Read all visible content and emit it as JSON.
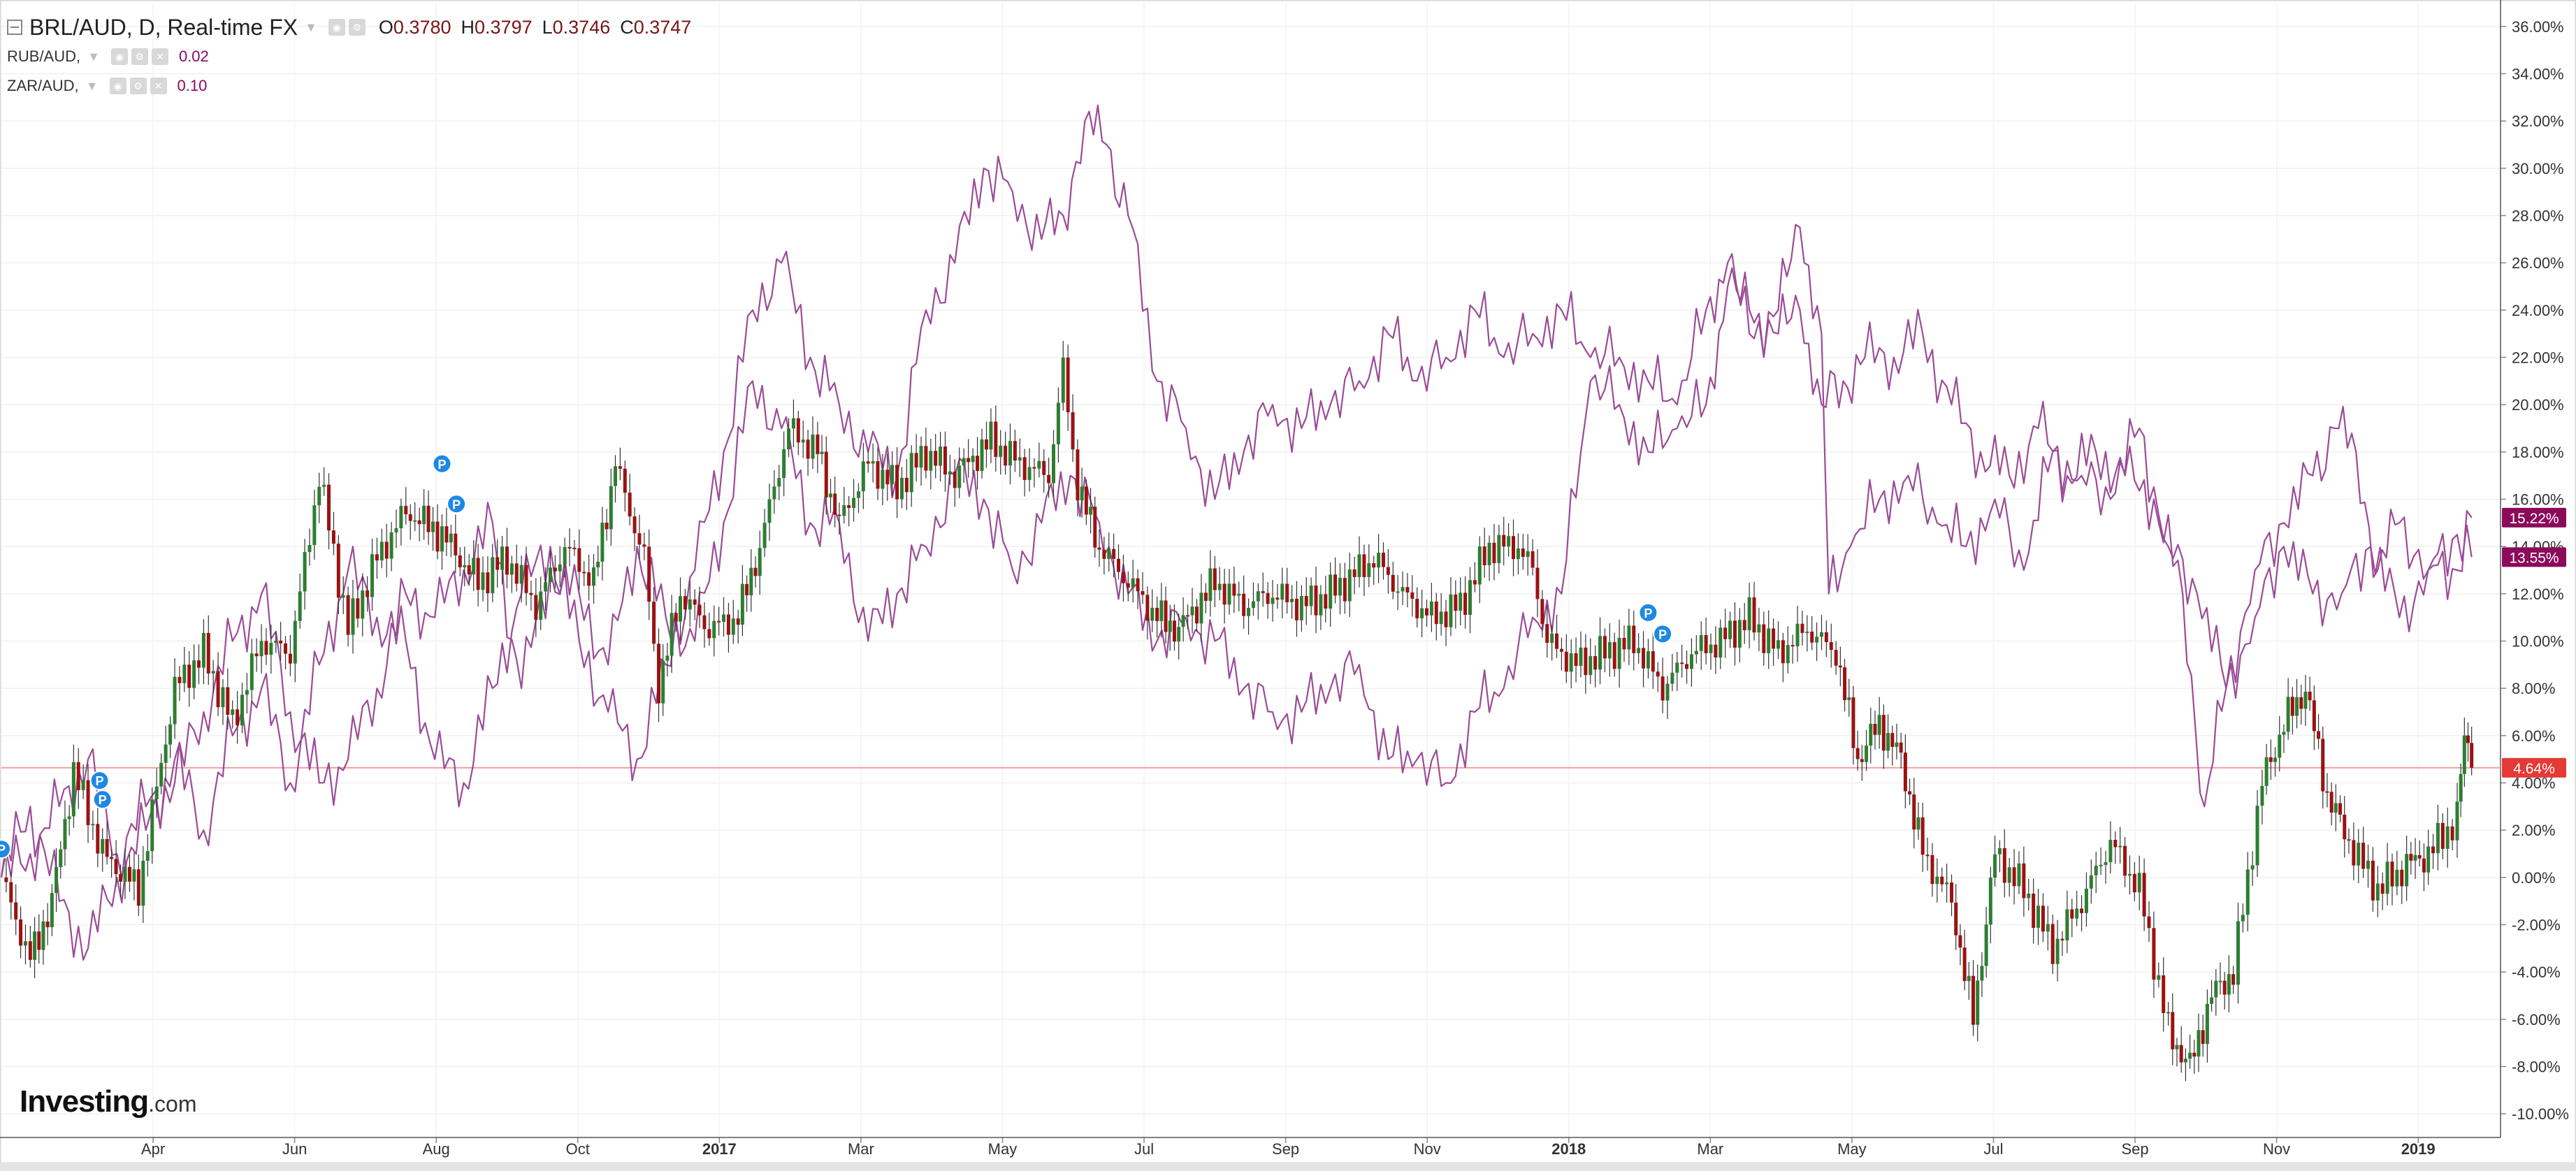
{
  "header": {
    "title": "BRL/AUD, D, Real-time FX",
    "ohlc": [
      {
        "label": "O",
        "value": "0.3780"
      },
      {
        "label": "H",
        "value": "0.3797"
      },
      {
        "label": "L",
        "value": "0.3746"
      },
      {
        "label": "C",
        "value": "0.3747"
      }
    ]
  },
  "comparisons": [
    {
      "symbol": "RUB/AUD,",
      "value": "0.02"
    },
    {
      "symbol": "ZAR/AUD,",
      "value": "0.10"
    }
  ],
  "logo": {
    "brand": "Investing",
    "suffix": ".com"
  },
  "chart_data": {
    "type": "line",
    "x_tick_labels": [
      "Apr",
      "Jun",
      "Aug",
      "Oct",
      "2017",
      "Mar",
      "May",
      "Jul",
      "Sep",
      "Nov",
      "2018",
      "Mar",
      "May",
      "Jul",
      "Sep",
      "Nov",
      "2019"
    ],
    "bold_x_ticks": [
      "2017",
      "2018",
      "2019"
    ],
    "y_tick_labels": [
      "36.00%",
      "34.00%",
      "32.00%",
      "30.00%",
      "28.00%",
      "26.00%",
      "24.00%",
      "22.00%",
      "20.00%",
      "18.00%",
      "16.00%",
      "14.00%",
      "12.00%",
      "10.00%",
      "8.00%",
      "6.00%",
      "4.00%",
      "2.00%",
      "0.00%",
      "-2.00%",
      "-4.00%",
      "-6.00%",
      "-8.00%",
      "-10.00%"
    ],
    "ylim": [
      -11,
      37
    ],
    "y_unit": "%",
    "grid": true,
    "reference_line": {
      "value": 4.64,
      "label": "4.64%",
      "color": "#e53935"
    },
    "series": [
      {
        "name": "BRL/AUD",
        "style": "candlestick",
        "up_color": "#2e7d32",
        "down_color": "#9b1212",
        "end_label": "4.64%",
        "values": [
          [
            0,
            0
          ],
          [
            2,
            -3.5
          ],
          [
            3.5,
            -1
          ],
          [
            5,
            4.5
          ],
          [
            7,
            1
          ],
          [
            9.5,
            -0.5
          ],
          [
            12,
            8
          ],
          [
            14,
            9.5
          ],
          [
            16,
            6.5
          ],
          [
            18,
            10
          ],
          [
            20,
            9.5
          ],
          [
            22,
            17
          ],
          [
            24,
            10.5
          ],
          [
            26,
            13.5
          ],
          [
            28,
            15.5
          ],
          [
            30.5,
            14.5
          ],
          [
            33,
            12.5
          ],
          [
            35,
            13.5
          ],
          [
            37,
            11.5
          ],
          [
            39,
            14
          ],
          [
            41,
            12.5
          ],
          [
            42.5,
            17.5
          ],
          [
            44.5,
            13.5
          ],
          [
            45.5,
            8
          ],
          [
            47,
            12
          ],
          [
            49,
            10.5
          ],
          [
            51,
            11
          ],
          [
            52.5,
            14
          ],
          [
            54.5,
            19
          ],
          [
            56.5,
            18
          ],
          [
            58,
            15
          ],
          [
            60,
            17.5
          ],
          [
            62,
            16.5
          ],
          [
            64,
            18
          ],
          [
            66,
            17
          ],
          [
            68.5,
            18.5
          ],
          [
            70.5,
            17.5
          ],
          [
            72.5,
            17
          ],
          [
            73.5,
            21.5
          ],
          [
            74.5,
            16.5
          ],
          [
            76,
            14
          ],
          [
            78,
            12.5
          ],
          [
            80,
            11
          ],
          [
            81.5,
            10.5
          ],
          [
            84,
            12.5
          ],
          [
            86,
            11.5
          ],
          [
            88,
            12
          ],
          [
            90,
            11.5
          ],
          [
            92,
            12
          ],
          [
            95,
            13.5
          ],
          [
            97,
            12
          ],
          [
            99,
            11
          ],
          [
            101,
            11.5
          ],
          [
            103,
            14
          ],
          [
            105,
            14
          ],
          [
            106,
            13
          ],
          [
            107,
            10
          ],
          [
            109,
            9
          ],
          [
            111,
            9.5
          ],
          [
            113,
            10
          ],
          [
            115,
            8
          ],
          [
            117,
            9.5
          ],
          [
            119,
            10
          ],
          [
            121,
            11
          ],
          [
            123,
            9.5
          ],
          [
            125,
            10.5
          ],
          [
            127,
            9.5
          ],
          [
            128.5,
            5
          ],
          [
            130,
            6.5
          ],
          [
            131.5,
            5
          ],
          [
            133,
            1
          ],
          [
            135,
            -1
          ],
          [
            136.5,
            -6
          ],
          [
            138,
            1
          ],
          [
            140,
            -0.5
          ],
          [
            142,
            -3
          ],
          [
            144,
            -1
          ],
          [
            146,
            1.5
          ],
          [
            148,
            -0.5
          ],
          [
            150,
            -6.5
          ],
          [
            151.5,
            -8
          ],
          [
            153,
            -5
          ],
          [
            154.5,
            -4
          ],
          [
            156.5,
            4
          ],
          [
            158,
            6.5
          ],
          [
            159.5,
            8
          ],
          [
            161,
            3.5
          ],
          [
            162.5,
            1.5
          ],
          [
            164.5,
            -0.5
          ],
          [
            166.5,
            0.5
          ],
          [
            168,
            1
          ],
          [
            170,
            2.5
          ],
          [
            170.5,
            6
          ],
          [
            171,
            4.64
          ]
        ]
      },
      {
        "name": "RUB/AUD",
        "style": "line",
        "color": "#9b4b97",
        "end_label": "15.22%",
        "values": [
          [
            0,
            0
          ],
          [
            2,
            3
          ],
          [
            4,
            -1
          ],
          [
            6,
            -3
          ],
          [
            8,
            0
          ],
          [
            10,
            2
          ],
          [
            12,
            5
          ],
          [
            14,
            2
          ],
          [
            16,
            6
          ],
          [
            18,
            8
          ],
          [
            20,
            4
          ],
          [
            22,
            9
          ],
          [
            24,
            13
          ],
          [
            26,
            11
          ],
          [
            28,
            10
          ],
          [
            30,
            5
          ],
          [
            32,
            4
          ],
          [
            34,
            8
          ],
          [
            36,
            12
          ],
          [
            38,
            14
          ],
          [
            40,
            10
          ],
          [
            42,
            7
          ],
          [
            44,
            5
          ],
          [
            46,
            9
          ],
          [
            48,
            13
          ],
          [
            50,
            18
          ],
          [
            52,
            24
          ],
          [
            54,
            26
          ],
          [
            56,
            22
          ],
          [
            58,
            20
          ],
          [
            60,
            18
          ],
          [
            62,
            17
          ],
          [
            64,
            24
          ],
          [
            66,
            26
          ],
          [
            68,
            30
          ],
          [
            70,
            29
          ],
          [
            72,
            27
          ],
          [
            73.5,
            28
          ],
          [
            75,
            32
          ],
          [
            76.5,
            31
          ],
          [
            78,
            28
          ],
          [
            80,
            21
          ],
          [
            82,
            19
          ],
          [
            84,
            16
          ],
          [
            86,
            18
          ],
          [
            88,
            20
          ],
          [
            90,
            19
          ],
          [
            92,
            20
          ],
          [
            94,
            21
          ],
          [
            96,
            23
          ],
          [
            98,
            21
          ],
          [
            100,
            22
          ],
          [
            102,
            24
          ],
          [
            104,
            22
          ],
          [
            106,
            23
          ],
          [
            108,
            24
          ],
          [
            110,
            22
          ],
          [
            112,
            22
          ],
          [
            114,
            21
          ],
          [
            116,
            20
          ],
          [
            118,
            24
          ],
          [
            119.5,
            26
          ],
          [
            121,
            23
          ],
          [
            123,
            24
          ],
          [
            124.5,
            27.5
          ],
          [
            126,
            23
          ],
          [
            126.5,
            12
          ],
          [
            128,
            14
          ],
          [
            130,
            16
          ],
          [
            132,
            17
          ],
          [
            134,
            15
          ],
          [
            136,
            14
          ],
          [
            138,
            16
          ],
          [
            140,
            13
          ],
          [
            142,
            18
          ],
          [
            144,
            17
          ],
          [
            146,
            16
          ],
          [
            148,
            19
          ],
          [
            150,
            14
          ],
          [
            152,
            12
          ],
          [
            154,
            8
          ],
          [
            156,
            11
          ],
          [
            158,
            14
          ],
          [
            160,
            12
          ],
          [
            162,
            12
          ],
          [
            164,
            14
          ],
          [
            166,
            11
          ],
          [
            168,
            13
          ],
          [
            170,
            13
          ],
          [
            171,
            15.22
          ]
        ]
      },
      {
        "name": "ZAR/AUD",
        "style": "line",
        "color": "#9b4b97",
        "end_label": "13.55%",
        "values": [
          [
            0,
            0
          ],
          [
            2,
            1
          ],
          [
            4,
            3
          ],
          [
            6,
            5
          ],
          [
            8,
            1
          ],
          [
            10,
            3
          ],
          [
            12,
            4
          ],
          [
            14,
            7
          ],
          [
            16,
            10
          ],
          [
            18,
            12
          ],
          [
            20,
            7
          ],
          [
            22,
            4
          ],
          [
            24,
            5
          ],
          [
            26,
            8
          ],
          [
            28,
            12
          ],
          [
            30,
            11
          ],
          [
            32,
            13
          ],
          [
            34,
            15
          ],
          [
            36,
            8
          ],
          [
            38,
            13
          ],
          [
            40,
            12
          ],
          [
            42,
            9
          ],
          [
            44,
            14
          ],
          [
            46,
            11
          ],
          [
            48,
            10
          ],
          [
            50,
            15
          ],
          [
            52,
            21
          ],
          [
            54,
            19
          ],
          [
            56,
            15
          ],
          [
            58,
            15
          ],
          [
            60,
            10
          ],
          [
            62,
            12
          ],
          [
            64,
            14
          ],
          [
            66,
            17
          ],
          [
            68,
            16
          ],
          [
            70,
            13
          ],
          [
            72,
            15
          ],
          [
            74,
            17
          ],
          [
            76,
            15
          ],
          [
            78,
            12
          ],
          [
            80,
            10
          ],
          [
            82,
            11
          ],
          [
            84,
            10
          ],
          [
            86,
            8
          ],
          [
            88,
            7
          ],
          [
            90,
            7
          ],
          [
            92,
            8
          ],
          [
            94,
            9
          ],
          [
            96,
            5
          ],
          [
            98,
            5
          ],
          [
            100,
            4
          ],
          [
            102,
            7
          ],
          [
            104,
            8
          ],
          [
            106,
            11
          ],
          [
            108,
            12
          ],
          [
            110,
            21
          ],
          [
            112,
            20
          ],
          [
            114,
            18
          ],
          [
            116,
            19
          ],
          [
            118,
            20
          ],
          [
            119.5,
            25
          ],
          [
            121,
            24
          ],
          [
            123,
            23
          ],
          [
            124.5,
            24
          ],
          [
            126,
            20
          ],
          [
            127.5,
            21
          ],
          [
            129,
            22
          ],
          [
            131,
            22
          ],
          [
            133,
            23
          ],
          [
            135,
            20
          ],
          [
            137,
            18
          ],
          [
            139,
            17
          ],
          [
            141,
            19
          ],
          [
            143,
            17
          ],
          [
            145,
            18
          ],
          [
            147,
            17
          ],
          [
            149,
            16
          ],
          [
            151,
            12
          ],
          [
            152.5,
            3
          ],
          [
            154,
            8
          ],
          [
            156,
            13
          ],
          [
            158,
            15
          ],
          [
            160,
            17
          ],
          [
            161.5,
            19
          ],
          [
            163,
            18
          ],
          [
            164.5,
            13
          ],
          [
            166,
            15
          ],
          [
            168,
            13
          ],
          [
            170,
            14.5
          ],
          [
            171,
            13.55
          ]
        ]
      }
    ],
    "annotations": [
      {
        "label": "P",
        "x": 0,
        "y": 1.2
      },
      {
        "label": "P",
        "x": 6.8,
        "y": 4.1
      },
      {
        "label": "P",
        "x": 7,
        "y": 3.3
      },
      {
        "label": "P",
        "x": 30.5,
        "y": 17.5
      },
      {
        "label": "P",
        "x": 31.5,
        "y": 15.8
      },
      {
        "label": "P",
        "x": 114,
        "y": 11.2
      },
      {
        "label": "P",
        "x": 115,
        "y": 10.3
      }
    ]
  }
}
